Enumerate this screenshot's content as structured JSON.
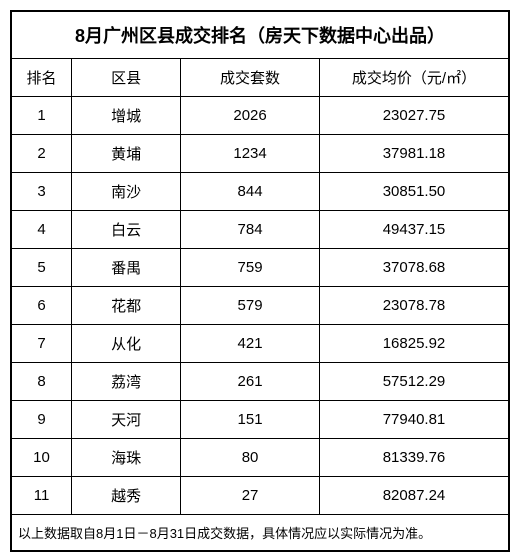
{
  "title": "8月广州区县成交排名（房天下数据中心出品）",
  "columns": [
    "排名",
    "区县",
    "成交套数",
    "成交均价（元/㎡）"
  ],
  "rows": [
    [
      "1",
      "增城",
      "2026",
      "23027.75"
    ],
    [
      "2",
      "黄埔",
      "1234",
      "37981.18"
    ],
    [
      "3",
      "南沙",
      "844",
      "30851.50"
    ],
    [
      "4",
      "白云",
      "784",
      "49437.15"
    ],
    [
      "5",
      "番禺",
      "759",
      "37078.68"
    ],
    [
      "6",
      "花都",
      "579",
      "23078.78"
    ],
    [
      "7",
      "从化",
      "421",
      "16825.92"
    ],
    [
      "8",
      "荔湾",
      "261",
      "57512.29"
    ],
    [
      "9",
      "天河",
      "151",
      "77940.81"
    ],
    [
      "10",
      "海珠",
      "80",
      "81339.76"
    ],
    [
      "11",
      "越秀",
      "27",
      "82087.24"
    ]
  ],
  "footnote": "以上数据取自8月1日－8月31日成交数据，具体情况应以实际情况为准。",
  "colors": {
    "border": "#000000",
    "background": "#ffffff",
    "text": "#000000"
  },
  "font_sizes": {
    "title": 18,
    "header": 15,
    "cell": 15,
    "footnote": 13
  }
}
